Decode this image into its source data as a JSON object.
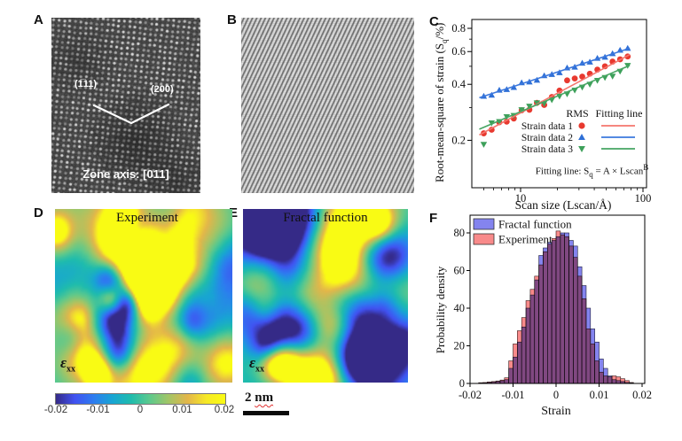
{
  "figure_labels": {
    "A": "A",
    "B": "B",
    "C": "C",
    "D": "D",
    "E": "E",
    "F": "F"
  },
  "panel_a": {
    "plane_left": "(1̅11)",
    "plane_right": "(200)",
    "zone_axis": "Zone axis: [011]"
  },
  "panel_d": {
    "title": "Experiment",
    "epsilon": "ε",
    "epsilon_sub": "xx"
  },
  "panel_e": {
    "title": "Fractal function",
    "epsilon": "ε",
    "epsilon_sub": "xx"
  },
  "colorbar": {
    "tick_labels": [
      "-0.02",
      "-0.01",
      "0",
      "0.01",
      "0.02"
    ],
    "colors": [
      "#352a87",
      "#4152f1",
      "#2d7cf0",
      "#18a5d3",
      "#1fbcad",
      "#5ec98c",
      "#a3c566",
      "#e3b64a",
      "#f6e926",
      "#f9fb14"
    ]
  },
  "scale_bar": {
    "value": "2",
    "unit": "nm"
  },
  "chart_data": [
    {
      "panel": "C",
      "type": "scatter",
      "x_label": "Scan size (Lscan/Å)",
      "y_label_parts": {
        "prefix": "Root-mean-square of strain (S",
        "sub": "q",
        "suffix": "/%)"
      },
      "x_scale": "log",
      "y_scale": "log",
      "x_range": [
        4,
        107
      ],
      "y_range": [
        0.111,
        0.893
      ],
      "x_ticks": [
        10,
        100
      ],
      "x_minor_ticks": [
        5,
        6,
        7,
        8,
        9,
        20,
        30,
        40,
        50,
        60,
        70,
        80,
        90
      ],
      "y_ticks": [
        0.2,
        0.4,
        0.6,
        0.8
      ],
      "y_minor_ticks": [
        0.3,
        0.5,
        0.7
      ],
      "legend": {
        "col1": "RMS",
        "col2": "Fitting line"
      },
      "equation_parts": {
        "prefix": "Fitting line: S",
        "sub": "q",
        "mid": " = A × Lscan",
        "sup": "B"
      },
      "x": [
        5.0,
        5.8,
        6.7,
        7.7,
        8.8,
        10.2,
        11.8,
        13.6,
        15.6,
        18.0,
        20.8,
        24.0,
        27.7,
        31.9,
        36.8,
        42.4,
        48.9,
        56.4,
        65.0,
        75.0
      ],
      "series": [
        {
          "name": "Strain data 1",
          "marker": "circle",
          "color": "#e8392f",
          "line_color": "#f4756d",
          "fit": {
            "A": 0.125,
            "B": 0.3515
          },
          "values": [
            0.218,
            0.228,
            0.25,
            0.252,
            0.262,
            0.29,
            0.292,
            0.318,
            0.31,
            0.342,
            0.37,
            0.42,
            0.43,
            0.44,
            0.456,
            0.48,
            0.5,
            0.53,
            0.545,
            0.565
          ]
        },
        {
          "name": "Strain data 2",
          "marker": "triangle-up",
          "color": "#2e6fd6",
          "line_color": "#3c78dd",
          "fit": {
            "A": 0.2435,
            "B": 0.2166
          },
          "values": [
            0.345,
            0.35,
            0.372,
            0.375,
            0.385,
            0.408,
            0.412,
            0.421,
            0.445,
            0.452,
            0.462,
            0.49,
            0.495,
            0.52,
            0.527,
            0.552,
            0.56,
            0.585,
            0.61,
            0.625
          ]
        },
        {
          "name": "Strain data 3",
          "marker": "triangle-down",
          "color": "#3da05a",
          "line_color": "#46a562",
          "fit": {
            "A": 0.15,
            "B": 0.2789
          },
          "values": [
            0.19,
            0.248,
            0.252,
            0.268,
            0.272,
            0.292,
            0.305,
            0.318,
            0.316,
            0.33,
            0.345,
            0.355,
            0.372,
            0.386,
            0.4,
            0.42,
            0.435,
            0.442,
            0.47,
            0.505
          ]
        }
      ]
    },
    {
      "panel": "F",
      "type": "histogram",
      "x_label": "Strain",
      "y_label": "Probability density",
      "x_ticks": [
        -0.02,
        -0.01,
        0,
        0.01,
        0.02
      ],
      "y_ticks": [
        0,
        20,
        40,
        60,
        80
      ],
      "x_range": [
        -0.0206,
        0.0206
      ],
      "y_range": [
        0,
        89
      ],
      "bin_width": 0.001,
      "bin_centers": [
        -0.0175,
        -0.0165,
        -0.0155,
        -0.0145,
        -0.0135,
        -0.0125,
        -0.0115,
        -0.0105,
        -0.0095,
        -0.0085,
        -0.0075,
        -0.0065,
        -0.0055,
        -0.0045,
        -0.0035,
        -0.0025,
        -0.0015,
        -0.0005,
        0.0005,
        0.0015,
        0.0025,
        0.0035,
        0.0045,
        0.0055,
        0.0065,
        0.0075,
        0.0085,
        0.0095,
        0.0105,
        0.0115,
        0.0125,
        0.0135,
        0.0145,
        0.0155,
        0.0165,
        0.0175
      ],
      "series": [
        {
          "name": "Fractal function",
          "color": "#8484ef",
          "edge": "#1c1c3a",
          "values": [
            0.2,
            0.3,
            0.5,
            0.7,
            1.0,
            1.4,
            2.0,
            8,
            14,
            22,
            30,
            40,
            47,
            55,
            68,
            72,
            75,
            76,
            78,
            80,
            80,
            76,
            73,
            62,
            52,
            40,
            29,
            22,
            13,
            8,
            4,
            2,
            1.5,
            1.0,
            0.5,
            0.3
          ]
        },
        {
          "name": "Experiment",
          "color": "#f88a8a",
          "edge": "#3a1c1c",
          "values": [
            0.4,
            0.5,
            0.8,
            1.0,
            1.3,
            1.8,
            3.0,
            12,
            21,
            28,
            35,
            44,
            50,
            57,
            63,
            70,
            74,
            77,
            81,
            79,
            78,
            73,
            67,
            57,
            45,
            29,
            21,
            12,
            6,
            4,
            3.5,
            4,
            3.5,
            2.5,
            1.5,
            0.5
          ]
        }
      ]
    }
  ]
}
